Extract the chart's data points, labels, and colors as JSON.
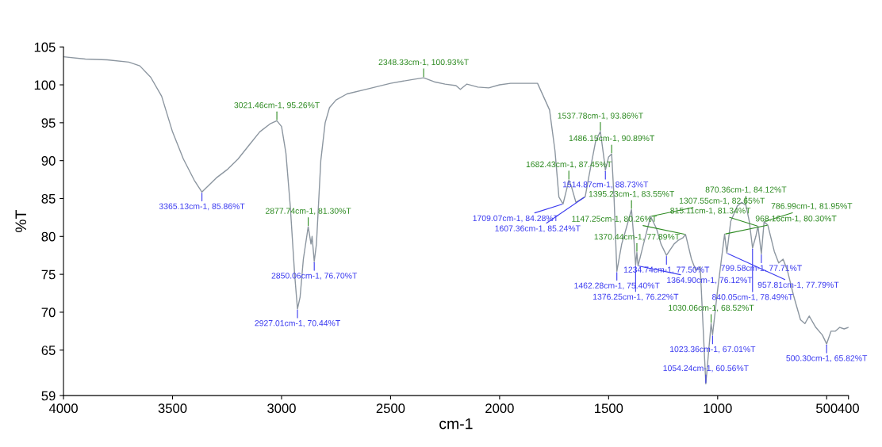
{
  "chart_data": {
    "type": "line",
    "xlabel": "cm-1",
    "ylabel": "%T",
    "xlim": [
      4000,
      400
    ],
    "xticks": [
      4000,
      3500,
      3000,
      2500,
      2000,
      1500,
      1000,
      500,
      400
    ],
    "ylim": [
      59,
      105
    ],
    "yticks": [
      59,
      65,
      70,
      75,
      80,
      85,
      90,
      95,
      100,
      105
    ],
    "grid": false,
    "legend": false,
    "marker": "none",
    "line_style": "solid",
    "series": [
      {
        "color": "#8c96a0",
        "x": [
          4000,
          3900,
          3800,
          3700,
          3650,
          3600,
          3550,
          3500,
          3450,
          3400,
          3365.13,
          3300,
          3250,
          3200,
          3150,
          3100,
          3050,
          3021.46,
          3000,
          2980,
          2960,
          2940,
          2927.01,
          2915,
          2900,
          2877.74,
          2865,
          2860,
          2850.06,
          2840,
          2820,
          2800,
          2780,
          2750,
          2700,
          2600,
          2500,
          2400,
          2348.33,
          2300,
          2250,
          2200,
          2180,
          2150,
          2100,
          2050,
          2000,
          1950,
          1850,
          1826,
          1771,
          1746,
          1728,
          1709.07,
          1690,
          1682.43,
          1670,
          1650,
          1607.36,
          1590,
          1560,
          1537.78,
          1520,
          1514.87,
          1500,
          1486.15,
          1475,
          1462.28,
          1440,
          1420,
          1395.23,
          1385,
          1376.25,
          1370.44,
          1364.9,
          1340,
          1307.55,
          1280,
          1260,
          1234.74,
          1200,
          1180,
          1160,
          1147.25,
          1120,
          1100,
          1080,
          1054.24,
          1030.06,
          1023.36,
          1000,
          968.16,
          957.81,
          940,
          910,
          890,
          870.36,
          855,
          840.05,
          825,
          815.11,
          799.58,
          786.99,
          770,
          740,
          720,
          700,
          680,
          650,
          620,
          600,
          580,
          550,
          520,
          500.3,
          480,
          460,
          440,
          420,
          400
        ],
        "values": [
          103.7,
          103.4,
          103.3,
          103.0,
          102.5,
          101,
          98.5,
          93.8,
          90.2,
          87.4,
          85.86,
          87.7,
          88.8,
          90.2,
          92.0,
          93.8,
          94.9,
          95.26,
          94.5,
          91,
          84,
          75,
          70.44,
          72,
          77,
          81.3,
          79,
          80,
          76.7,
          79,
          90,
          95,
          97,
          98,
          98.8,
          99.5,
          100.2,
          100.7,
          100.93,
          100.4,
          100.1,
          99.9,
          99.4,
          100.1,
          99.7,
          99.6,
          100.0,
          100.2,
          100.2,
          100.2,
          96.7,
          91.3,
          85.2,
          84.28,
          86.5,
          87.45,
          86.5,
          84.5,
          85.24,
          88,
          92.5,
          93.86,
          90,
          88.73,
          90.5,
          90.89,
          85,
          75.4,
          79,
          81,
          83.55,
          80,
          76.22,
          77.89,
          76.12,
          79,
          82.65,
          81,
          79,
          77.5,
          79,
          79.5,
          79.8,
          80.26,
          77,
          75.5,
          76,
          60.56,
          68.52,
          67.01,
          73,
          80.3,
          77.79,
          82,
          84,
          84.5,
          84.12,
          82,
          78.49,
          80,
          81.34,
          77.71,
          81.95,
          81.5,
          78,
          76.5,
          77,
          75.5,
          72,
          69,
          68.5,
          69.5,
          68,
          67,
          65.82,
          67.5,
          67.5,
          68,
          67.8,
          68.0
        ]
      }
    ],
    "annotations": [
      {
        "text": "3365.13cm-1, 85.86%T",
        "x": 3365.13,
        "y": 85.86
      },
      {
        "text": "3021.46cm-1, 95.26%T",
        "x": 3021.46,
        "y": 95.26
      },
      {
        "text": "2927.01cm-1, 70.44%T",
        "x": 2927.01,
        "y": 70.44
      },
      {
        "text": "2877.74cm-1, 81.30%T",
        "x": 2877.74,
        "y": 81.3
      },
      {
        "text": "2850.06cm-1, 76.70%T",
        "x": 2850.06,
        "y": 76.7
      },
      {
        "text": "2348.33cm-1, 100.93%T",
        "x": 2348.33,
        "y": 100.93
      },
      {
        "text": "1709.07cm-1, 84.28%T",
        "x": 1709.07,
        "y": 84.28
      },
      {
        "text": "1682.43cm-1, 87.45%T",
        "x": 1682.43,
        "y": 87.45
      },
      {
        "text": "1607.36cm-1, 85.24%T",
        "x": 1607.36,
        "y": 85.24
      },
      {
        "text": "1537.78cm-1, 93.86%T",
        "x": 1537.78,
        "y": 93.86
      },
      {
        "text": "1514.87cm-1, 88.73%T",
        "x": 1514.87,
        "y": 88.73
      },
      {
        "text": "1486.15cm-1, 90.89%T",
        "x": 1486.15,
        "y": 90.89
      },
      {
        "text": "1462.28cm-1, 75.40%T",
        "x": 1462.28,
        "y": 75.4
      },
      {
        "text": "1395.23cm-1, 83.55%T",
        "x": 1395.23,
        "y": 83.55
      },
      {
        "text": "1376.25cm-1, 76.22%T",
        "x": 1376.25,
        "y": 76.22
      },
      {
        "text": "1370.44cm-1, 77.89%T",
        "x": 1370.44,
        "y": 77.89
      },
      {
        "text": "1364.90cm-1, 76.12%T",
        "x": 1364.9,
        "y": 76.12
      },
      {
        "text": "1307.55cm-1, 82.65%T",
        "x": 1307.55,
        "y": 82.65
      },
      {
        "text": "1234.74cm-1, 77.50%T",
        "x": 1234.74,
        "y": 77.5
      },
      {
        "text": "1147.25cm-1, 80.26%T",
        "x": 1147.25,
        "y": 80.26
      },
      {
        "text": "1054.24cm-1, 60.56%T",
        "x": 1054.24,
        "y": 60.56
      },
      {
        "text": "1030.06cm-1, 68.52%T",
        "x": 1030.06,
        "y": 68.52
      },
      {
        "text": "1023.36cm-1, 67.01%T",
        "x": 1023.36,
        "y": 67.01
      },
      {
        "text": "968.16cm-1, 80.30%T",
        "x": 968.16,
        "y": 80.3
      },
      {
        "text": "957.81cm-1, 77.79%T",
        "x": 957.81,
        "y": 77.79
      },
      {
        "text": "870.36cm-1, 84.12%T",
        "x": 870.36,
        "y": 84.12
      },
      {
        "text": "840.05cm-1, 78.49%T",
        "x": 840.05,
        "y": 78.49
      },
      {
        "text": "815.11cm-1, 81.34%T",
        "x": 815.11,
        "y": 81.34
      },
      {
        "text": "799.58cm-1, 77.71%T",
        "x": 799.58,
        "y": 77.71
      },
      {
        "text": "786.99cm-1, 81.95%T",
        "x": 786.99,
        "y": 81.95
      },
      {
        "text": "500.30cm-1, 65.82%T",
        "x": 500.3,
        "y": 65.82
      }
    ]
  }
}
